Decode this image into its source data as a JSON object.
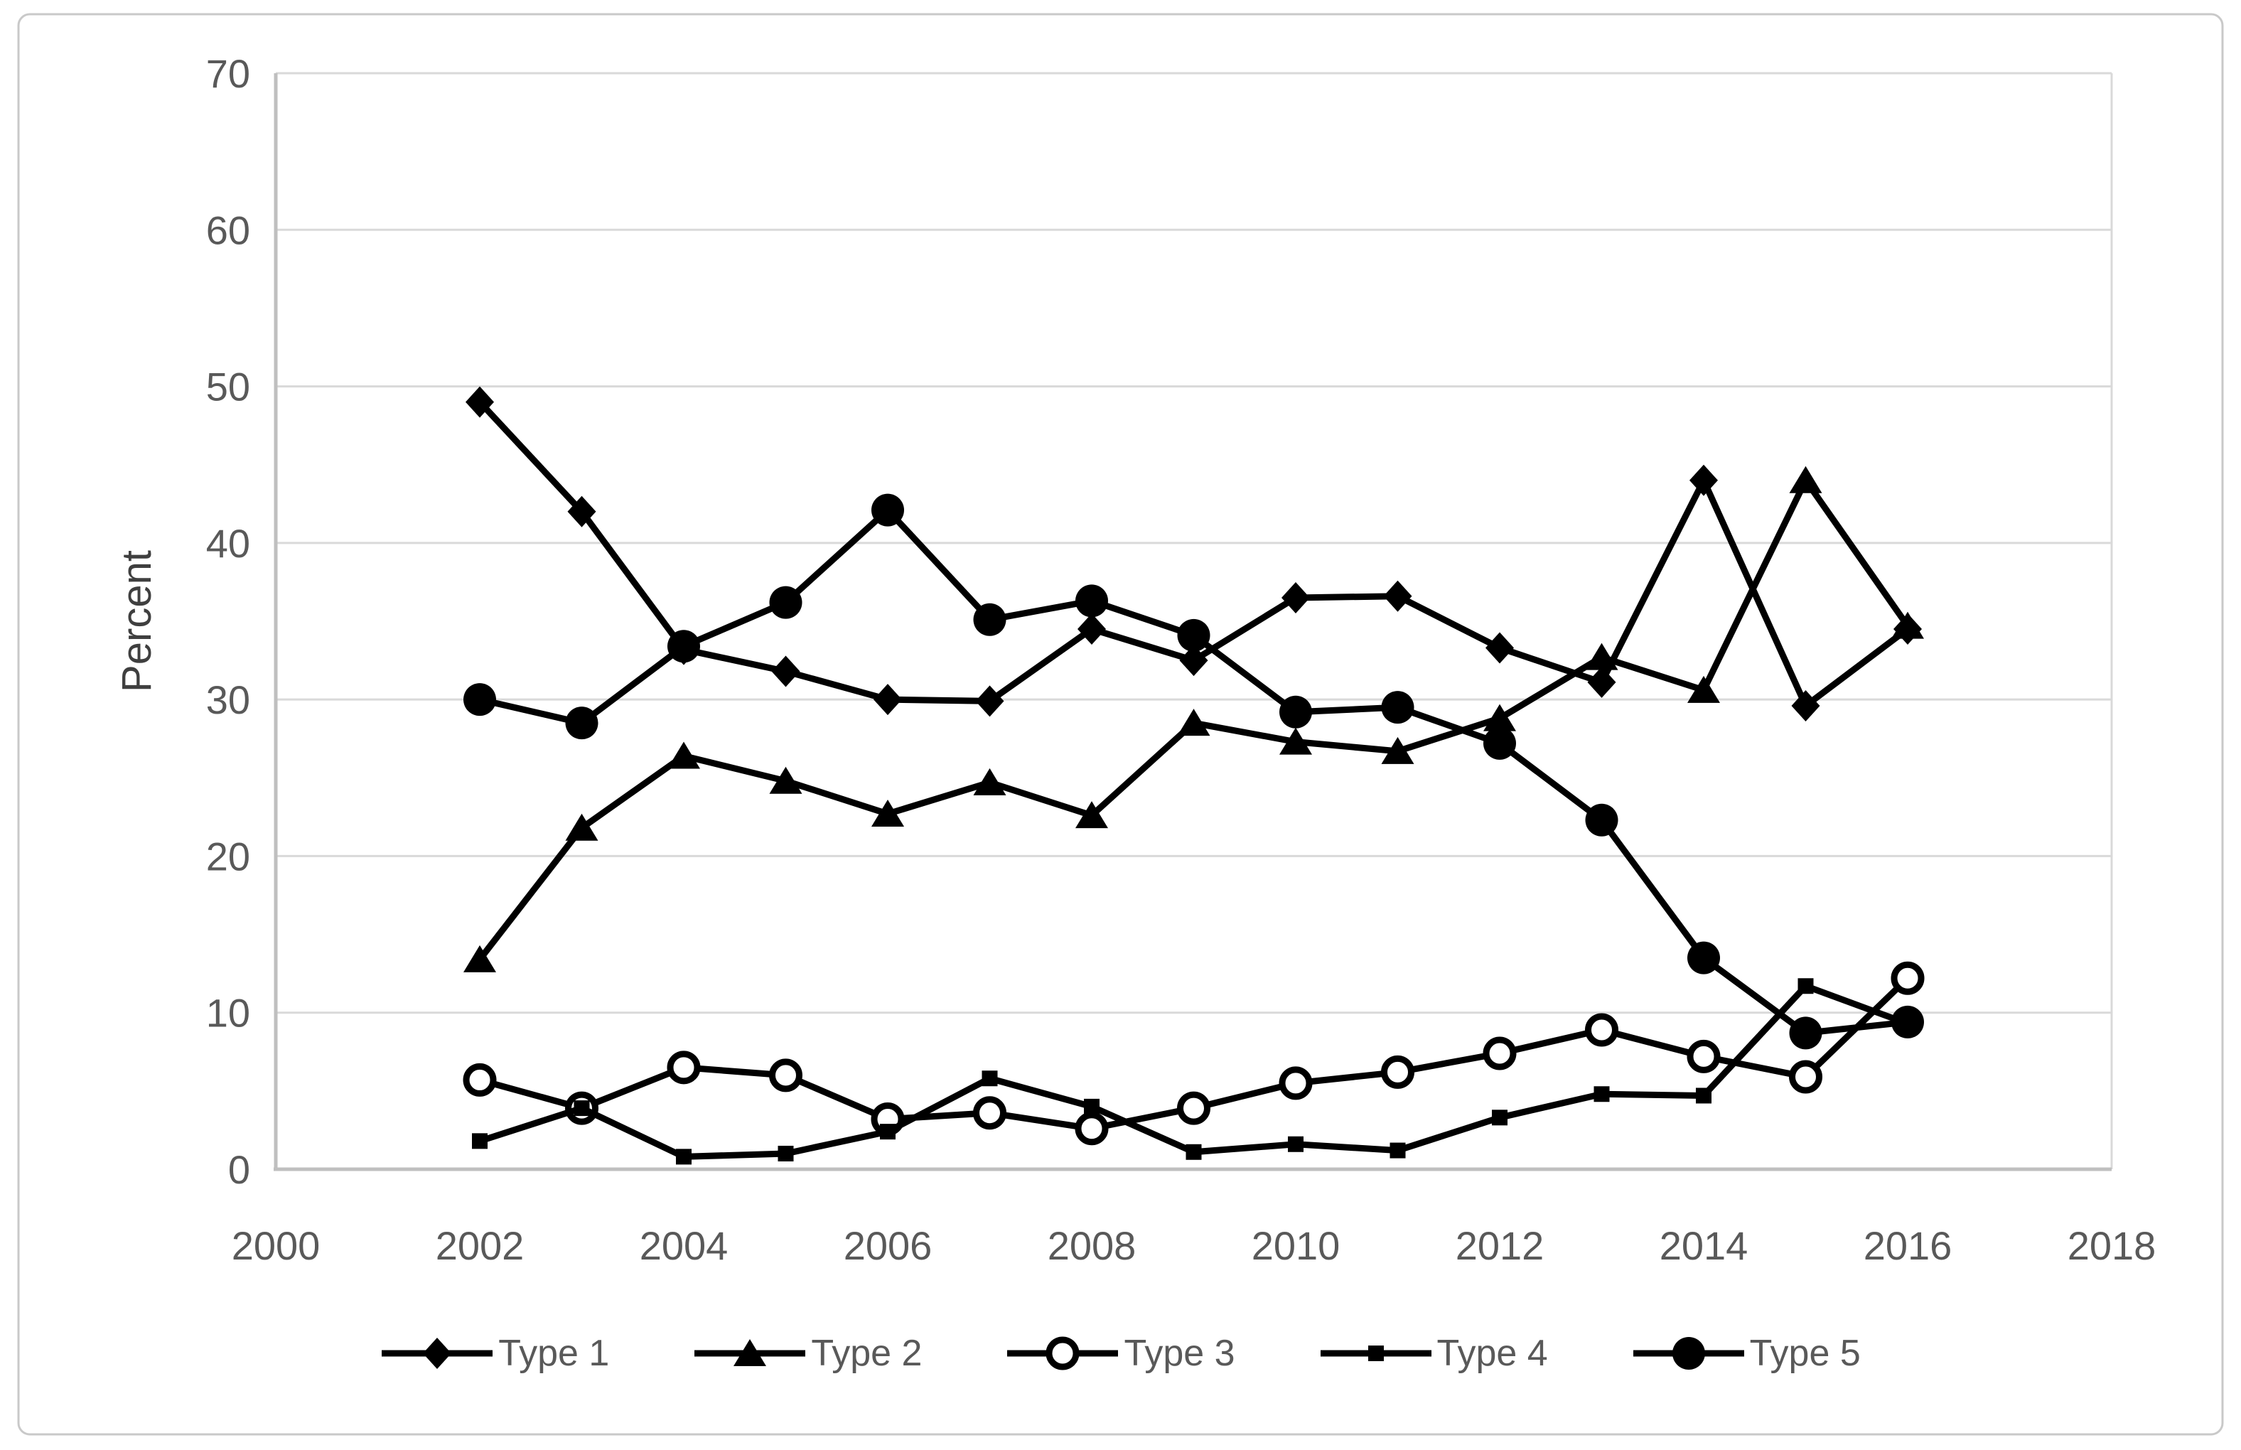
{
  "chart_data": {
    "type": "line",
    "title": "",
    "xlabel": "",
    "ylabel": "Percent",
    "xlim": [
      2000,
      2018
    ],
    "ylim": [
      0,
      70
    ],
    "x_ticks": [
      2000,
      2002,
      2004,
      2006,
      2008,
      2010,
      2012,
      2014,
      2016,
      2018
    ],
    "y_ticks": [
      0,
      10,
      20,
      30,
      40,
      50,
      60,
      70
    ],
    "grid": "horizontal",
    "legend_position": "bottom",
    "x": [
      2002,
      2003,
      2004,
      2005,
      2006,
      2007,
      2008,
      2009,
      2010,
      2011,
      2012,
      2013,
      2014,
      2015,
      2016
    ],
    "series": [
      {
        "name": "Type 1",
        "marker": "diamond",
        "values": [
          49.0,
          42.0,
          33.2,
          31.8,
          30.0,
          29.9,
          34.5,
          32.5,
          36.5,
          36.6,
          33.3,
          31.1,
          44.0,
          29.6,
          34.5
        ]
      },
      {
        "name": "Type 2",
        "marker": "triangle",
        "values": [
          13.4,
          21.8,
          26.4,
          24.8,
          22.7,
          24.7,
          22.6,
          28.5,
          27.3,
          26.7,
          28.8,
          32.7,
          30.6,
          44.0,
          34.7
        ]
      },
      {
        "name": "Type 3",
        "marker": "open-circle",
        "values": [
          5.7,
          3.9,
          6.5,
          6.0,
          3.2,
          3.6,
          2.6,
          3.9,
          5.5,
          6.2,
          7.4,
          8.9,
          7.2,
          5.9,
          12.2
        ]
      },
      {
        "name": "Type 4",
        "marker": "square",
        "values": [
          1.8,
          3.9,
          0.8,
          1.0,
          2.4,
          5.8,
          4.0,
          1.1,
          1.6,
          1.2,
          3.3,
          4.8,
          4.7,
          11.7,
          9.3
        ]
      },
      {
        "name": "Type 5",
        "marker": "circle",
        "values": [
          30.0,
          28.5,
          33.4,
          36.2,
          42.1,
          35.1,
          36.3,
          34.1,
          29.2,
          29.5,
          27.2,
          22.3,
          13.5,
          8.7,
          9.4
        ]
      }
    ],
    "colors": {
      "line": "#000000",
      "tick_label": "#595959",
      "axis_title": "#3f3f3f",
      "legend_text": "#595959",
      "gridline": "#d9d9d9",
      "axis_line": "#bfbfbf",
      "chart_border": "#c9c9c9",
      "background": "#ffffff"
    }
  }
}
